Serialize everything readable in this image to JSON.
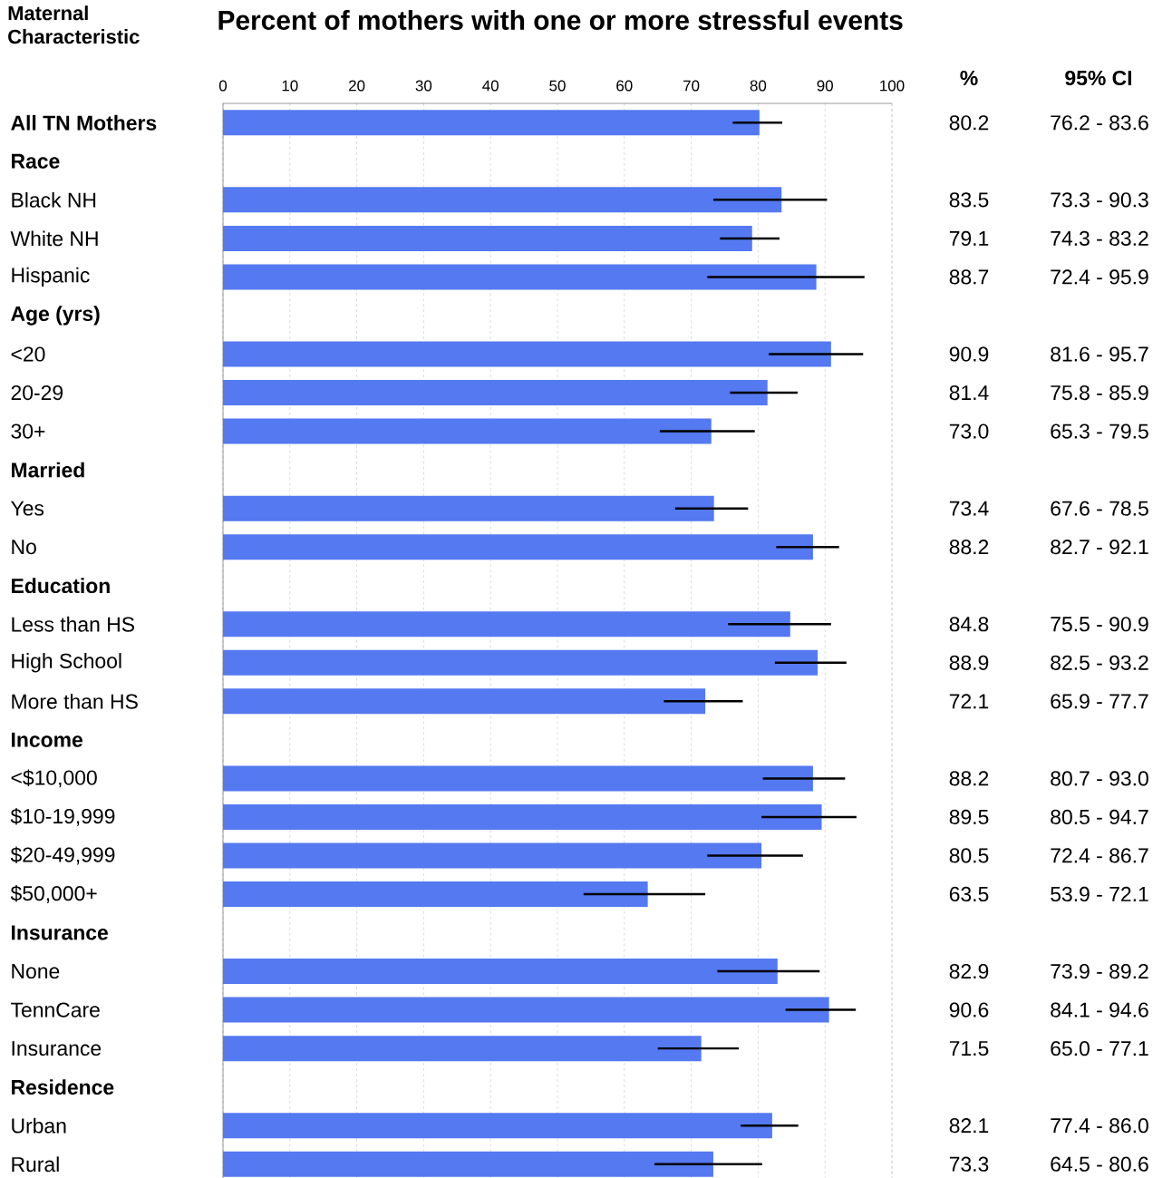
{
  "chart_data": {
    "type": "bar",
    "orientation": "horizontal",
    "title": "Percent of mothers with one or more stressful events",
    "ylabel": "Maternal Characteristic",
    "annotations": [
      "%",
      "95% CI",
      "76.2 - 83.6",
      "73.3 - 90.3",
      "74.3 - 83.2",
      "72.4 - 95.9",
      "81.6 - 95.7",
      "75.8 - 85.9",
      "65.3 - 79.5",
      "67.6 - 78.5",
      "82.7 - 92.1",
      "75.5 - 90.9",
      "82.5 - 93.2",
      "65.9 - 77.7",
      "80.7 - 93.0",
      "80.5 - 94.7",
      "72.4 - 86.7",
      "53.9 - 72.1",
      "73.9 - 89.2",
      "84.1 - 94.6",
      "65.0 - 77.1",
      "77.4 - 86.0",
      "64.5 - 80.6"
    ],
    "value_labels": [
      "80.2",
      null,
      "83.5",
      "79.1",
      "88.7",
      null,
      "90.9",
      "81.4",
      "73.0",
      null,
      "73.4",
      "88.2",
      null,
      "84.8",
      "88.9",
      "72.1",
      null,
      "88.2",
      "89.5",
      "80.5",
      "63.5",
      null,
      "82.9",
      "90.6",
      "71.5",
      null,
      "82.1",
      "73.3"
    ],
    "categories": [
      "**All TN Mothers**",
      "**Race**",
      "Black NH",
      "White NH",
      "Hispanic",
      "**Age (yrs)**",
      "<20",
      "20-29",
      "30+",
      "**Married**",
      "Yes",
      "No",
      "**Education**",
      "Less than HS",
      "High School",
      "More than HS",
      "**Income**",
      "<$10,000",
      "$10-19,999",
      "$20-49,999",
      "$50,000+",
      "**Insurance**",
      "None",
      "TennCare",
      "Insurance",
      "**Residence**",
      "Urban",
      "Rural"
    ],
    "values": [
      80.2,
      null,
      83.5,
      79.1,
      88.7,
      null,
      90.9,
      81.4,
      73.0,
      null,
      73.4,
      88.2,
      null,
      84.8,
      88.9,
      72.1,
      null,
      88.2,
      89.5,
      80.5,
      63.5,
      null,
      82.9,
      90.6,
      71.5,
      null,
      82.1,
      73.3
    ],
    "errors": [
      [
        76.2,
        83.6
      ],
      null,
      [
        73.3,
        90.3
      ],
      [
        74.3,
        83.2
      ],
      [
        72.4,
        95.9
      ],
      null,
      [
        81.6,
        95.7
      ],
      [
        75.8,
        85.9
      ],
      [
        65.3,
        79.5
      ],
      null,
      [
        67.6,
        78.5
      ],
      [
        82.7,
        92.1
      ],
      null,
      [
        75.5,
        90.9
      ],
      [
        82.5,
        93.2
      ],
      [
        65.9,
        77.7
      ],
      null,
      [
        80.7,
        93.0
      ],
      [
        80.5,
        94.7
      ],
      [
        72.4,
        86.7
      ],
      [
        53.9,
        72.1
      ],
      null,
      [
        73.9,
        89.2
      ],
      [
        84.1,
        94.6
      ],
      [
        65.0,
        77.1
      ],
      null,
      [
        77.4,
        86.0
      ],
      [
        64.5,
        80.6
      ]
    ],
    "color": "#5479f0",
    "xlim": [
      0,
      100
    ],
    "xticks": [
      0,
      10,
      20,
      30,
      40,
      50,
      60,
      70,
      80,
      90,
      100
    ],
    "grid": "x"
  }
}
